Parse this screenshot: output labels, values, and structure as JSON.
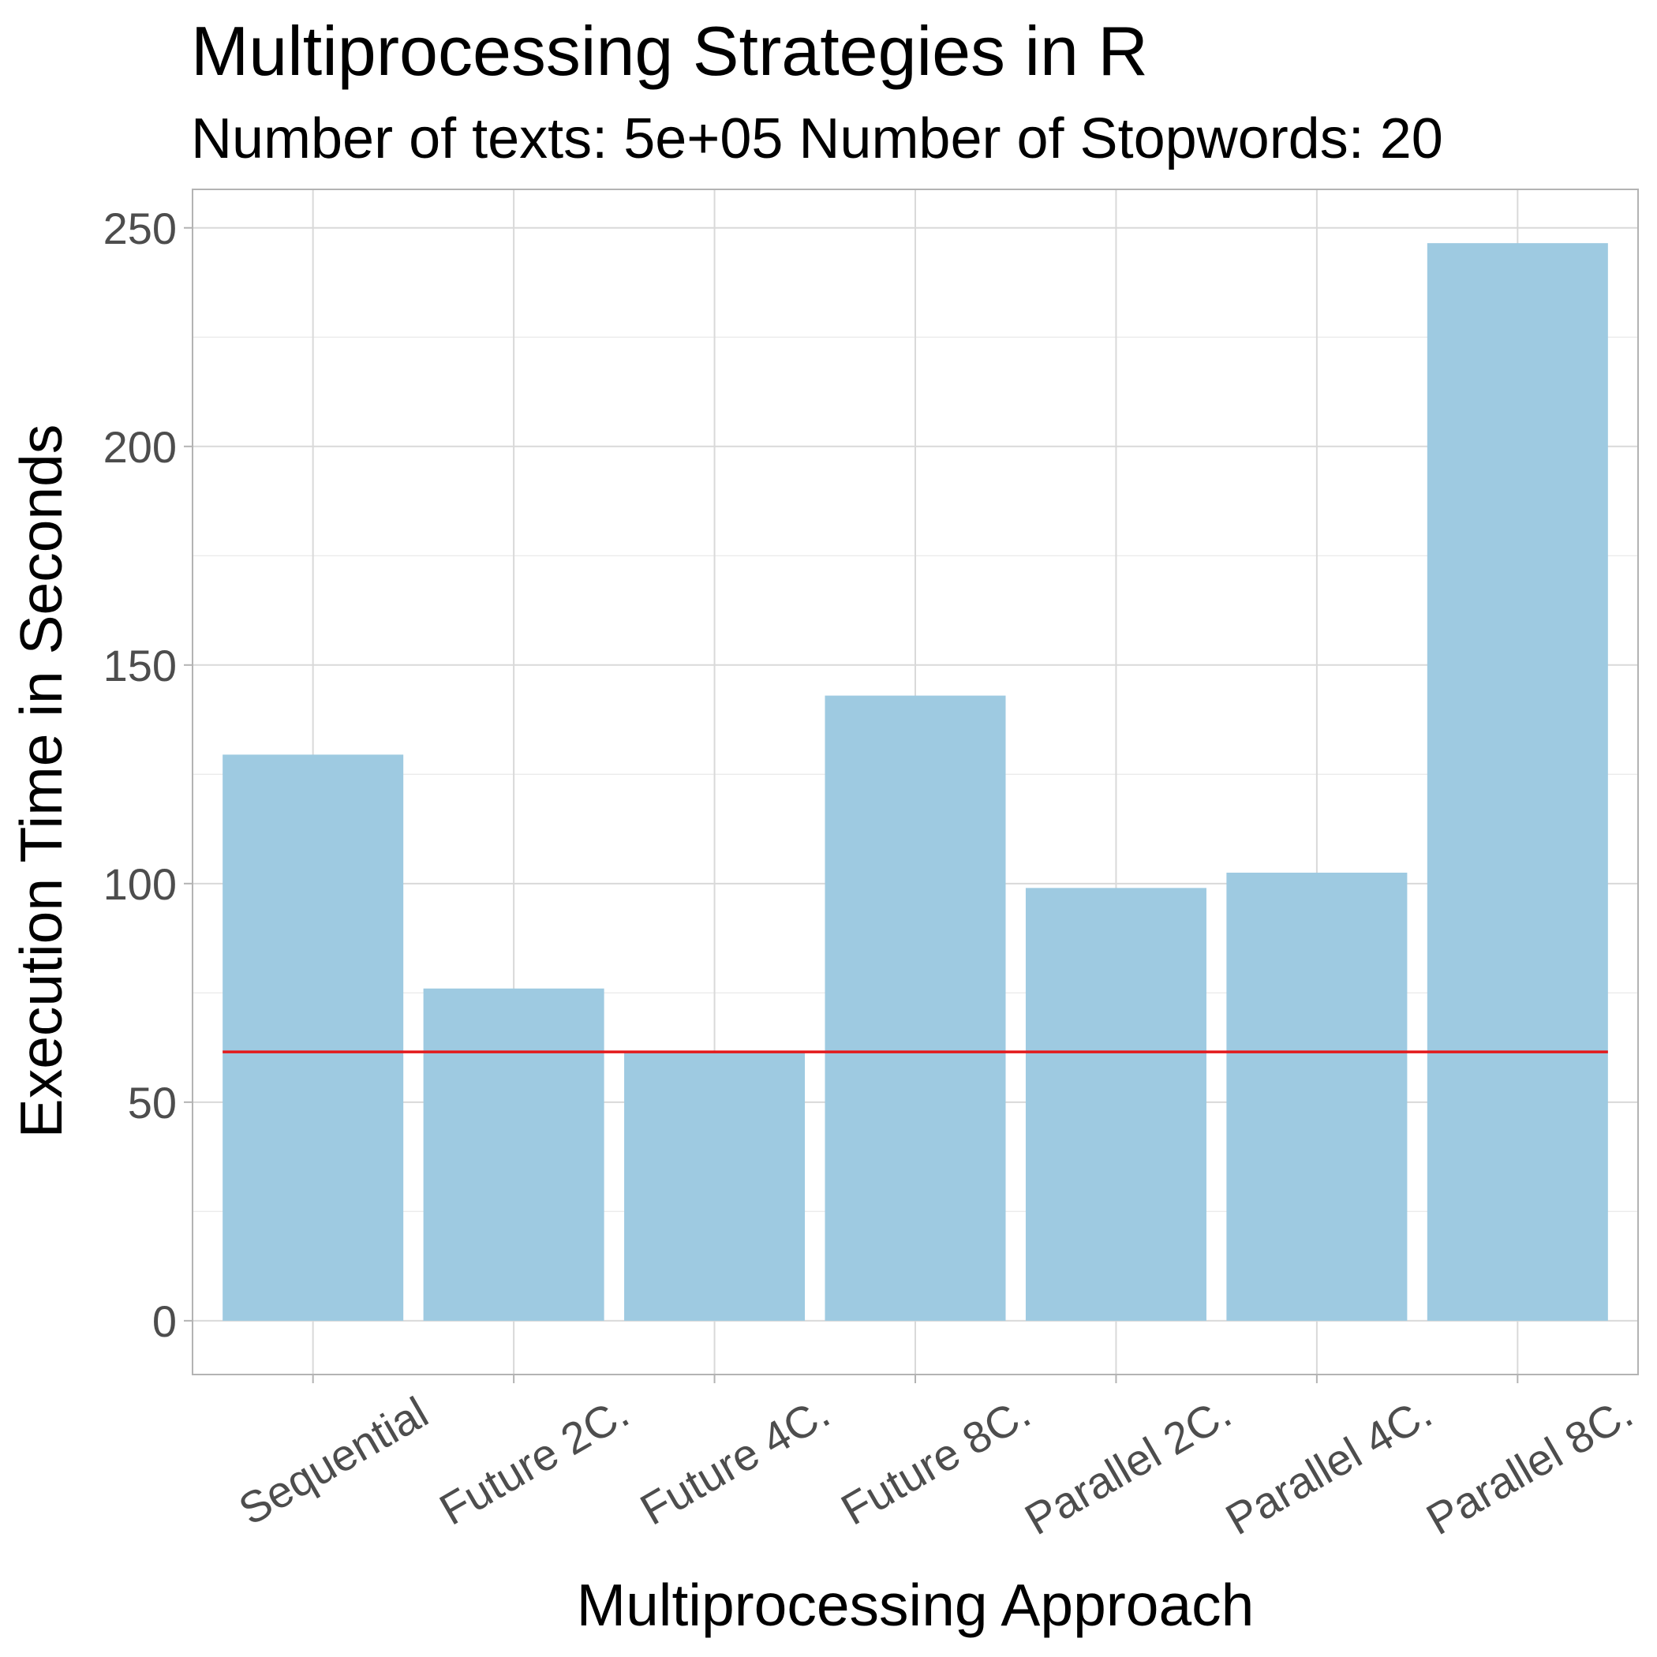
{
  "chart_data": {
    "type": "bar",
    "title": "Multiprocessing Strategies in R",
    "subtitle": "Number of texts: 5e+05 Number of Stopwords:  20",
    "xlabel": "Multiprocessing Approach",
    "ylabel": "Execution Time in Seconds",
    "categories": [
      "Sequential",
      "Future 2C.",
      "Future 4C.",
      "Future 8C.",
      "Parallel 2C.",
      "Parallel 4C.",
      "Parallel 8C."
    ],
    "values": [
      129.5,
      76,
      61.5,
      143,
      99,
      102.5,
      246.5
    ],
    "y_ticks": [
      0,
      50,
      100,
      150,
      200,
      250
    ],
    "ylim": [
      -12.3,
      258.8
    ],
    "reference_line": {
      "y": 61.5,
      "color": "#e31a1c"
    },
    "bar_color": "#9ecae1",
    "grid": true,
    "legend": "none"
  }
}
